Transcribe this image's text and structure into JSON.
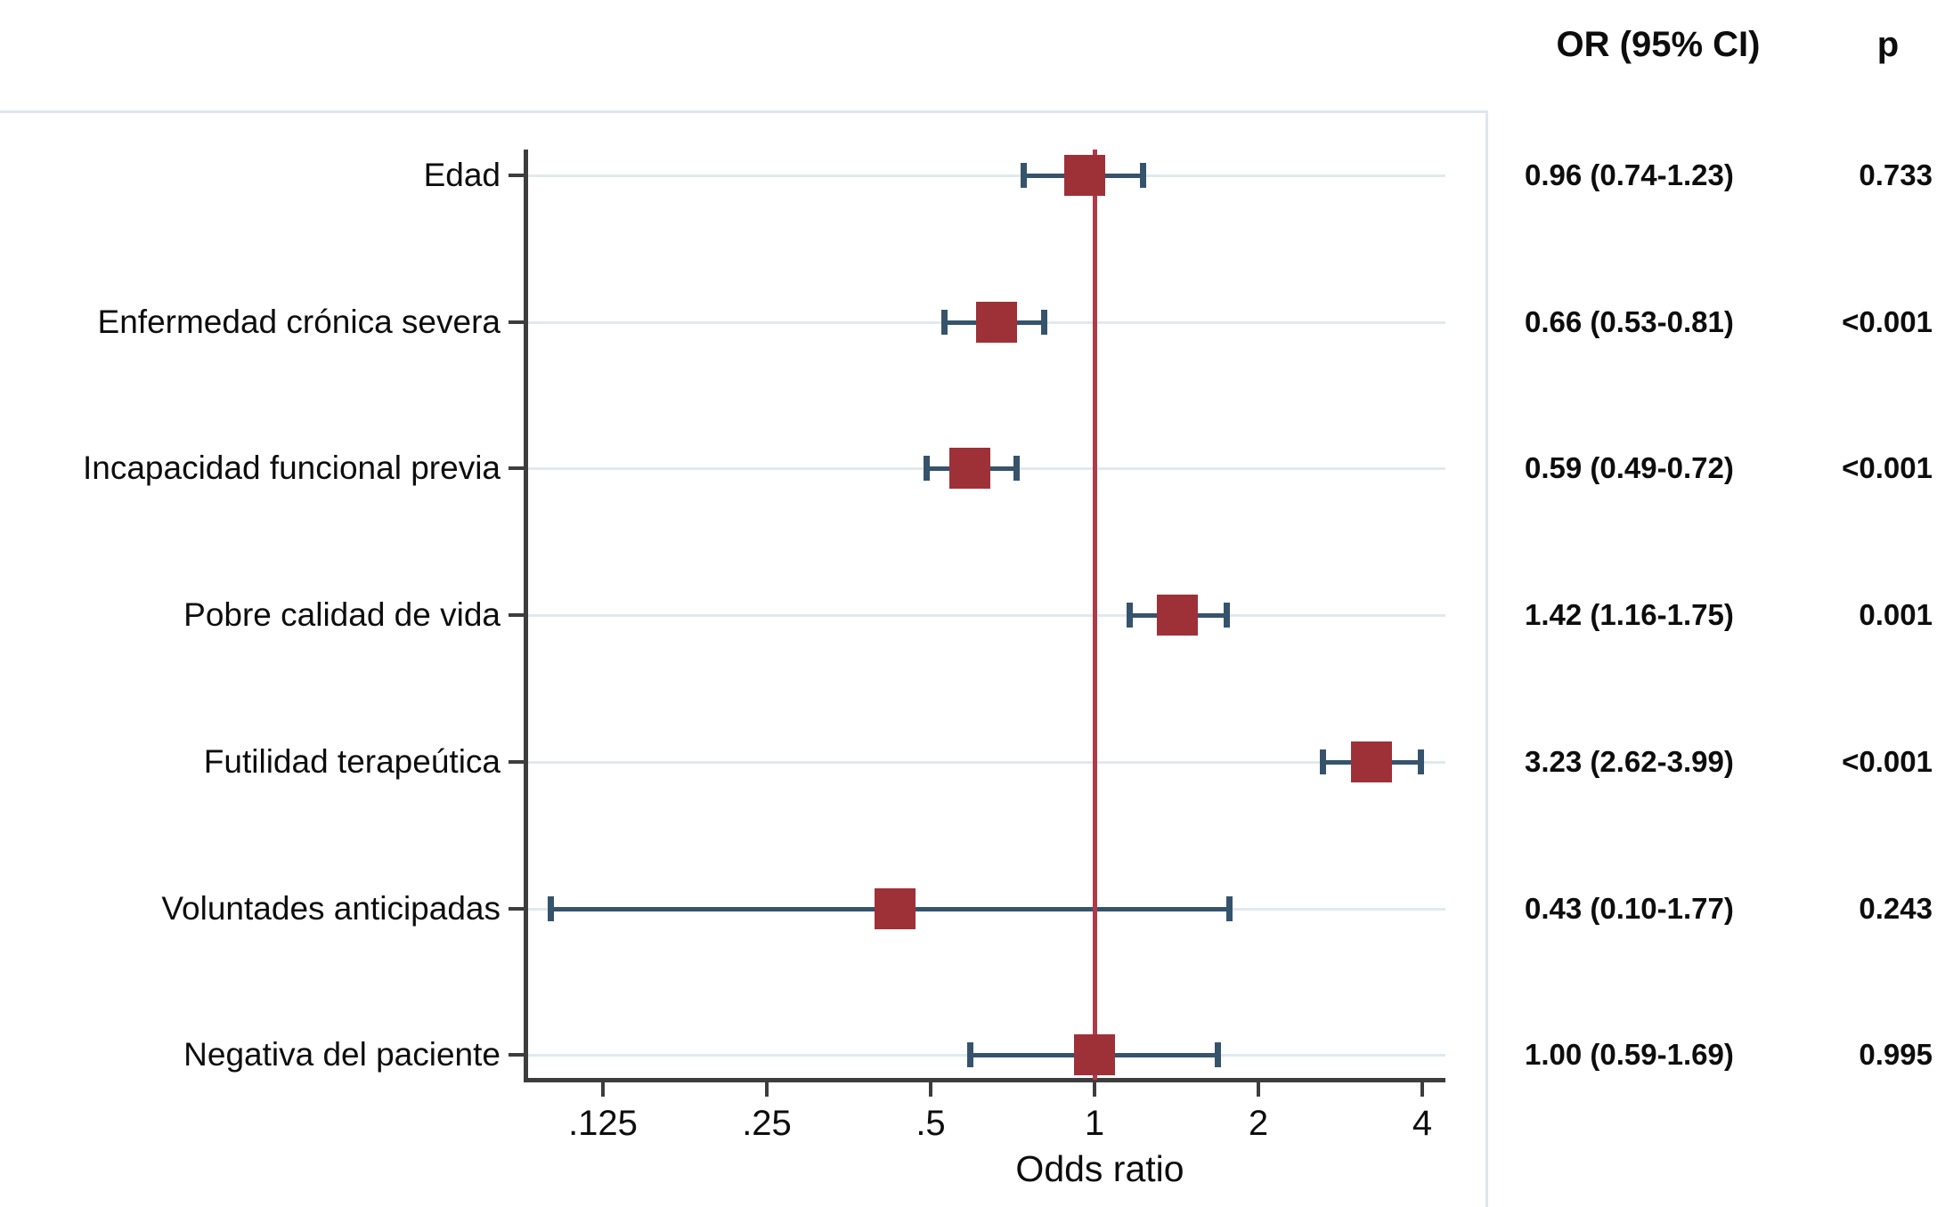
{
  "header": {
    "or_col": "OR (95% CI)",
    "p_col": "p"
  },
  "chart_data": {
    "type": "forest",
    "xlabel": "Odds ratio",
    "x_scale": "log2",
    "x_range": [
      0.09,
      4.4
    ],
    "ref_line_value": 1,
    "grid": "horizontal-row-lines",
    "x_ticks": [
      {
        "label": ".125",
        "value": 0.125
      },
      {
        "label": ".25",
        "value": 0.25
      },
      {
        "label": ".5",
        "value": 0.5
      },
      {
        "label": "1",
        "value": 1
      },
      {
        "label": "2",
        "value": 2
      },
      {
        "label": "4",
        "value": 4
      }
    ],
    "rows": [
      {
        "label": "Edad",
        "or": 0.96,
        "ci_low": 0.74,
        "ci_high": 1.23,
        "or_text": "0.96 (0.74-1.23)",
        "p": "0.733"
      },
      {
        "label": "Enfermedad crónica severa",
        "or": 0.66,
        "ci_low": 0.53,
        "ci_high": 0.81,
        "or_text": "0.66 (0.53-0.81)",
        "p": "<0.001"
      },
      {
        "label": "Incapacidad funcional previa",
        "or": 0.59,
        "ci_low": 0.49,
        "ci_high": 0.72,
        "or_text": "0.59 (0.49-0.72)",
        "p": "<0.001"
      },
      {
        "label": "Pobre calidad de vida",
        "or": 1.42,
        "ci_low": 1.16,
        "ci_high": 1.75,
        "or_text": "1.42 (1.16-1.75)",
        "p": "0.001"
      },
      {
        "label": "Futilidad terapeútica",
        "or": 3.23,
        "ci_low": 2.62,
        "ci_high": 3.99,
        "or_text": "3.23 (2.62-3.99)",
        "p": "<0.001"
      },
      {
        "label": "Voluntades anticipadas",
        "or": 0.43,
        "ci_low": 0.1,
        "ci_high": 1.77,
        "or_text": "0.43 (0.10-1.77)",
        "p": "0.243"
      },
      {
        "label": "Negativa del paciente",
        "or": 1.0,
        "ci_low": 0.59,
        "ci_high": 1.69,
        "or_text": "1.00 (0.59-1.69)",
        "p": "0.995"
      }
    ],
    "colors": {
      "marker": "#9E3138",
      "ci": "#36536C",
      "ref_line": "#AF3A49",
      "axis": "#3D3D3D",
      "gridline": "#E0EAEE",
      "border": "#E2E5EC",
      "text": "#0d0d0d",
      "background": "#FFFFFF"
    }
  }
}
